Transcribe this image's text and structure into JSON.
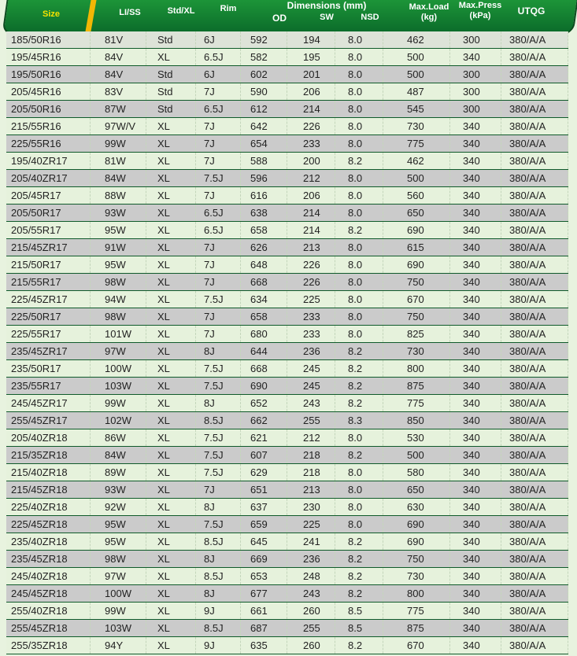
{
  "header": {
    "size": "Size",
    "li_ss": "LI/SS",
    "std_xl": "Std/XL",
    "rim": "Rim",
    "dimensions": "Dimensions (mm)",
    "od": "OD",
    "sw": "SW",
    "nsd": "NSD",
    "max_load": "Max.Load",
    "max_load_unit": "(kg)",
    "max_press": "Max.Press",
    "max_press_unit": "(kPa)",
    "utqg": "UTQG"
  },
  "colors": {
    "header_green": "#138a34",
    "size_text": "#f5e300",
    "accent_stripe": "#f2b705",
    "row_light": "#e6f2dc",
    "row_grey": "#cbcbcb"
  },
  "rows": [
    [
      "185/50R16",
      "81V",
      "Std",
      "6J",
      "592",
      "194",
      "8.0",
      "462",
      "300",
      "380/A/A"
    ],
    [
      "195/45R16",
      "84V",
      "XL",
      "6.5J",
      "582",
      "195",
      "8.0",
      "500",
      "340",
      "380/A/A"
    ],
    [
      "195/50R16",
      "84V",
      "Std",
      "6J",
      "602",
      "201",
      "8.0",
      "500",
      "300",
      "380/A/A"
    ],
    [
      "205/45R16",
      "83V",
      "Std",
      "7J",
      "590",
      "206",
      "8.0",
      "487",
      "300",
      "380/A/A"
    ],
    [
      "205/50R16",
      "87W",
      "Std",
      "6.5J",
      "612",
      "214",
      "8.0",
      "545",
      "300",
      "380/A/A"
    ],
    [
      "215/55R16",
      "97W/V",
      "XL",
      "7J",
      "642",
      "226",
      "8.0",
      "730",
      "340",
      "380/A/A"
    ],
    [
      "225/55R16",
      "99W",
      "XL",
      "7J",
      "654",
      "233",
      "8.0",
      "775",
      "340",
      "380/A/A"
    ],
    [
      "195/40ZR17",
      "81W",
      "XL",
      "7J",
      "588",
      "200",
      "8.2",
      "462",
      "340",
      "380/A/A"
    ],
    [
      "205/40ZR17",
      "84W",
      "XL",
      "7.5J",
      "596",
      "212",
      "8.0",
      "500",
      "340",
      "380/A/A"
    ],
    [
      "205/45R17",
      "88W",
      "XL",
      "7J",
      "616",
      "206",
      "8.0",
      "560",
      "340",
      "380/A/A"
    ],
    [
      "205/50R17",
      "93W",
      "XL",
      "6.5J",
      "638",
      "214",
      "8.0",
      "650",
      "340",
      "380/A/A"
    ],
    [
      "205/55R17",
      "95W",
      "XL",
      "6.5J",
      "658",
      "214",
      "8.2",
      "690",
      "340",
      "380/A/A"
    ],
    [
      "215/45ZR17",
      "91W",
      "XL",
      "7J",
      "626",
      "213",
      "8.0",
      "615",
      "340",
      "380/A/A"
    ],
    [
      "215/50R17",
      "95W",
      "XL",
      "7J",
      "648",
      "226",
      "8.0",
      "690",
      "340",
      "380/A/A"
    ],
    [
      "215/55R17",
      "98W",
      "XL",
      "7J",
      "668",
      "226",
      "8.0",
      "750",
      "340",
      "380/A/A"
    ],
    [
      "225/45ZR17",
      "94W",
      "XL",
      "7.5J",
      "634",
      "225",
      "8.0",
      "670",
      "340",
      "380/A/A"
    ],
    [
      "225/50R17",
      "98W",
      "XL",
      "7J",
      "658",
      "233",
      "8.0",
      "750",
      "340",
      "380/A/A"
    ],
    [
      "225/55R17",
      "101W",
      "XL",
      "7J",
      "680",
      "233",
      "8.0",
      "825",
      "340",
      "380/A/A"
    ],
    [
      "235/45ZR17",
      "97W",
      "XL",
      "8J",
      "644",
      "236",
      "8.2",
      "730",
      "340",
      "380/A/A"
    ],
    [
      "235/50R17",
      "100W",
      "XL",
      "7.5J",
      "668",
      "245",
      "8.2",
      "800",
      "340",
      "380/A/A"
    ],
    [
      "235/55R17",
      "103W",
      "XL",
      "7.5J",
      "690",
      "245",
      "8.2",
      "875",
      "340",
      "380/A/A"
    ],
    [
      "245/45ZR17",
      "99W",
      "XL",
      "8J",
      "652",
      "243",
      "8.2",
      "775",
      "340",
      "380/A/A"
    ],
    [
      "255/45ZR17",
      "102W",
      "XL",
      "8.5J",
      "662",
      "255",
      "8.3",
      "850",
      "340",
      "380/A/A"
    ],
    [
      "205/40ZR18",
      "86W",
      "XL",
      "7.5J",
      "621",
      "212",
      "8.0",
      "530",
      "340",
      "380/A/A"
    ],
    [
      "215/35ZR18",
      "84W",
      "XL",
      "7.5J",
      "607",
      "218",
      "8.2",
      "500",
      "340",
      "380/A/A"
    ],
    [
      "215/40ZR18",
      "89W",
      "XL",
      "7.5J",
      "629",
      "218",
      "8.0",
      "580",
      "340",
      "380/A/A"
    ],
    [
      "215/45ZR18",
      "93W",
      "XL",
      "7J",
      "651",
      "213",
      "8.0",
      "650",
      "340",
      "380/A/A"
    ],
    [
      "225/40ZR18",
      "92W",
      "XL",
      "8J",
      "637",
      "230",
      "8.0",
      "630",
      "340",
      "380/A/A"
    ],
    [
      "225/45ZR18",
      "95W",
      "XL",
      "7.5J",
      "659",
      "225",
      "8.0",
      "690",
      "340",
      "380/A/A"
    ],
    [
      "235/40ZR18",
      "95W",
      "XL",
      "8.5J",
      "645",
      "241",
      "8.2",
      "690",
      "340",
      "380/A/A"
    ],
    [
      "235/45ZR18",
      "98W",
      "XL",
      "8J",
      "669",
      "236",
      "8.2",
      "750",
      "340",
      "380/A/A"
    ],
    [
      "245/40ZR18",
      "97W",
      "XL",
      "8.5J",
      "653",
      "248",
      "8.2",
      "730",
      "340",
      "380/A/A"
    ],
    [
      "245/45ZR18",
      "100W",
      "XL",
      "8J",
      "677",
      "243",
      "8.2",
      "800",
      "340",
      "380/A/A"
    ],
    [
      "255/40ZR18",
      "99W",
      "XL",
      "9J",
      "661",
      "260",
      "8.5",
      "775",
      "340",
      "380/A/A"
    ],
    [
      "255/45ZR18",
      "103W",
      "XL",
      "8.5J",
      "687",
      "255",
      "8.5",
      "875",
      "340",
      "380/A/A"
    ],
    [
      "255/35ZR18",
      "94Y",
      "XL",
      "9J",
      "635",
      "260",
      "8.2",
      "670",
      "340",
      "380/A/A"
    ]
  ]
}
